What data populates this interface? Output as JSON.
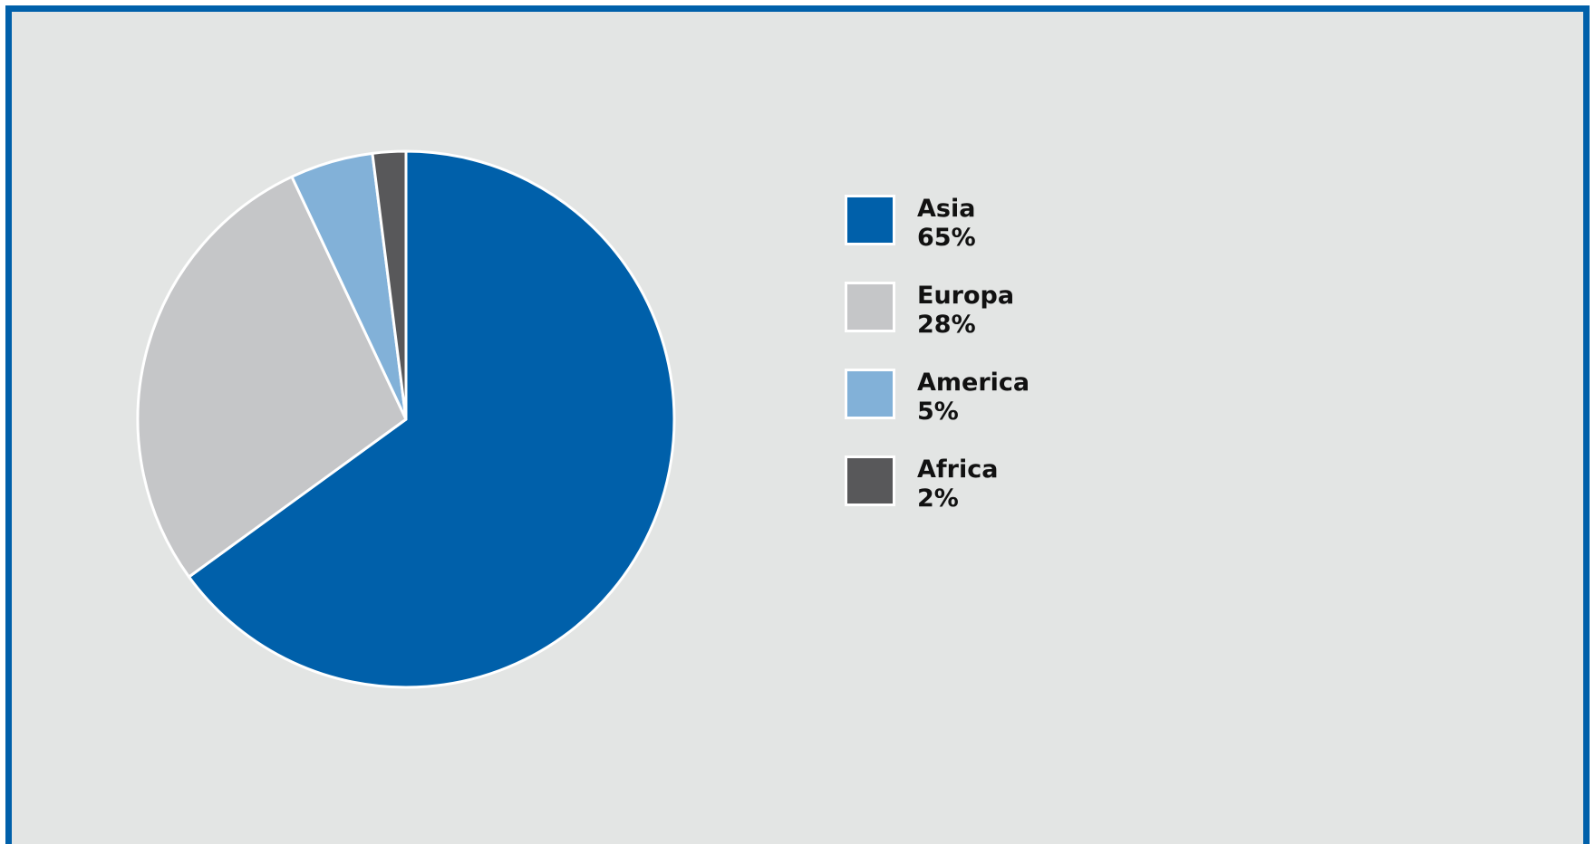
{
  "chart_data": {
    "type": "pie",
    "title": "",
    "start_angle": "top",
    "direction": "clockwise",
    "legend_position": "right",
    "slices": [
      {
        "label": "Asia",
        "value": 65,
        "value_label": "65%",
        "color": "#0060aa"
      },
      {
        "label": "Europa",
        "value": 28,
        "value_label": "28%",
        "color": "#c5c6c8"
      },
      {
        "label": "America",
        "value": 5,
        "value_label": "5%",
        "color": "#82b1d8"
      },
      {
        "label": "Africa",
        "value": 2,
        "value_label": "2%",
        "color": "#58585a"
      }
    ]
  },
  "colors": {
    "frame": "#0060aa",
    "background": "#e3e5e4",
    "slice_border": "#ffffff"
  }
}
